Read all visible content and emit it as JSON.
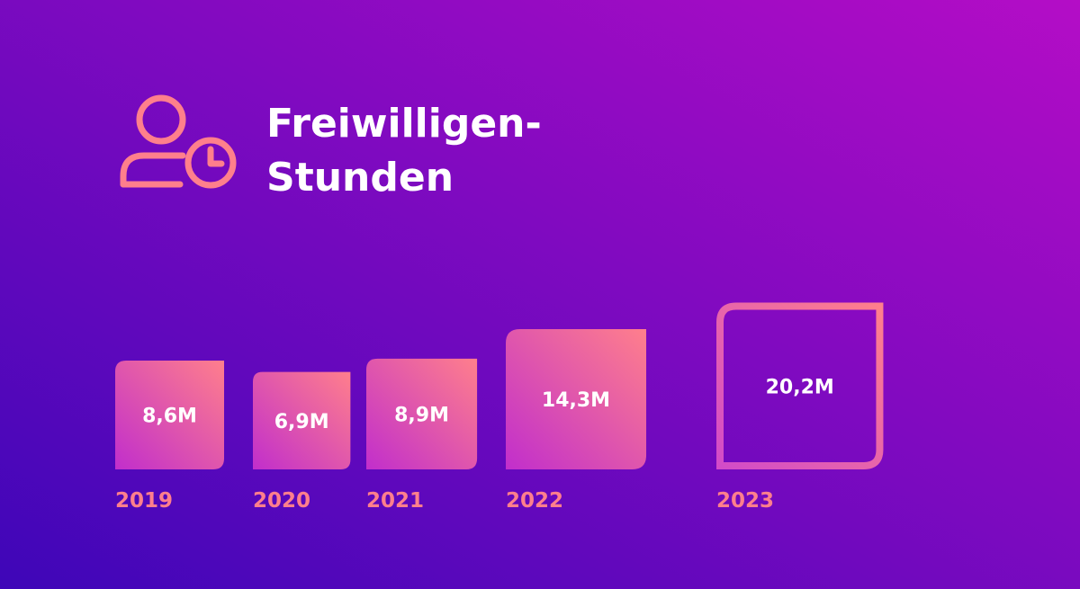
{
  "colors": {
    "background_start": "#3E06B8",
    "background_end": "#B40DC6",
    "accent": "#FF7F8C",
    "accent_pink": "#D24BC8",
    "text": "#FFFFFF"
  },
  "title": {
    "icon": "user-clock-icon",
    "lines": [
      "Freiwilligen-",
      "Stunden"
    ]
  },
  "chart_data": {
    "type": "bar",
    "title": "Freiwilligen-Stunden",
    "categories": [
      "2019",
      "2020",
      "2021",
      "2022",
      "2023"
    ],
    "values": [
      8.6,
      6.9,
      8.9,
      14.3,
      20.2
    ],
    "value_labels": [
      "8,6M",
      "6,9M",
      "8,9M",
      "14,3M",
      "20,2M"
    ],
    "unit": "M",
    "outlined_category": "2023",
    "grid": false,
    "legend": "none"
  }
}
